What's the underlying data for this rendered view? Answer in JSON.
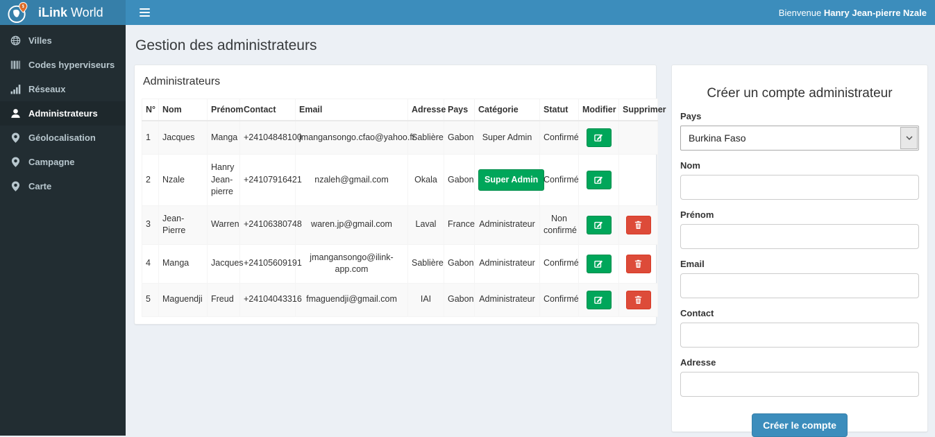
{
  "app": {
    "brand_bold": "iLink",
    "brand_rest": " World",
    "welcome_prefix": "Bienvenue",
    "welcome_user": "Hanry Jean-pierre Nzale"
  },
  "sidebar": {
    "items": [
      {
        "label": "Villes",
        "icon": "globe-icon",
        "active": false
      },
      {
        "label": "Codes hyperviseurs",
        "icon": "barcode-icon",
        "active": false
      },
      {
        "label": "Réseaux",
        "icon": "signal-icon",
        "active": false
      },
      {
        "label": "Administrateurs",
        "icon": "user-icon",
        "active": true
      },
      {
        "label": "Géolocalisation",
        "icon": "map-marker-icon",
        "active": false
      },
      {
        "label": "Campagne",
        "icon": "map-marker-icon",
        "active": false
      },
      {
        "label": "Carte",
        "icon": "map-marker-icon",
        "active": false
      }
    ]
  },
  "page": {
    "title": "Gestion des administrateurs"
  },
  "table_panel": {
    "title": "Administrateurs",
    "headers": [
      "N°",
      "Nom",
      "Prénom",
      "Contact",
      "Email",
      "Adresse",
      "Pays",
      "Catégorie",
      "Statut",
      "Modifier",
      "Supprimer"
    ],
    "rows": [
      {
        "num": "1",
        "nom": "Jacques",
        "prenom": "Manga",
        "contact": "+24104848100",
        "email": "jmangansongo.cfao@yahoo.fr",
        "adresse": "Sablière",
        "pays": "Gabon",
        "categorie": "Super Admin",
        "categorie_style": "text",
        "statut": "Confirmé",
        "can_delete": false
      },
      {
        "num": "2",
        "nom": "Nzale",
        "prenom": "Hanry Jean-pierre",
        "contact": "+24107916421",
        "email": "nzaleh@gmail.com",
        "adresse": "Okala",
        "pays": "Gabon",
        "categorie": "Super Admin",
        "categorie_style": "button",
        "statut": "Confirmé",
        "can_delete": false
      },
      {
        "num": "3",
        "nom": "Jean-Pierre",
        "prenom": "Warren",
        "contact": "+24106380748",
        "email": "waren.jp@gmail.com",
        "adresse": "Laval",
        "pays": "France",
        "categorie": "Administrateur",
        "categorie_style": "text",
        "statut": "Non confirmé",
        "can_delete": true
      },
      {
        "num": "4",
        "nom": "Manga",
        "prenom": "Jacques",
        "contact": "+24105609191",
        "email": "jmangansongo@ilink-app.com",
        "adresse": "Sablière",
        "pays": "Gabon",
        "categorie": "Administrateur",
        "categorie_style": "text",
        "statut": "Confirmé",
        "can_delete": true
      },
      {
        "num": "5",
        "nom": "Maguendji",
        "prenom": "Freud",
        "contact": "+24104043316",
        "email": "fmaguendji@gmail.com",
        "adresse": "IAI",
        "pays": "Gabon",
        "categorie": "Administrateur",
        "categorie_style": "text",
        "statut": "Confirmé",
        "can_delete": true
      }
    ],
    "edit_icon": "edit-icon",
    "delete_icon": "trash-icon"
  },
  "form_panel": {
    "title": "Créer un compte administrateur",
    "fields": [
      {
        "label": "Pays",
        "type": "select",
        "value": "Burkina Faso",
        "name": "pays"
      },
      {
        "label": "Nom",
        "type": "text",
        "value": "",
        "name": "nom"
      },
      {
        "label": "Prénom",
        "type": "text",
        "value": "",
        "name": "prenom"
      },
      {
        "label": "Email",
        "type": "text",
        "value": "",
        "name": "email"
      },
      {
        "label": "Contact",
        "type": "text",
        "value": "",
        "name": "contact"
      },
      {
        "label": "Adresse",
        "type": "text",
        "value": "",
        "name": "adresse"
      }
    ],
    "submit_label": "Créer le compte"
  },
  "colors": {
    "accent": "#3c8dbc",
    "accent_dark": "#367fa9",
    "success": "#00a65a",
    "success_dark": "#008d4c",
    "danger": "#dd4b39",
    "danger_dark": "#d73925",
    "sidebar_bg": "#222d32",
    "sidebar_active_bg": "#1e282c",
    "sidebar_text": "#b8c7ce",
    "content_bg": "#ecf0f5"
  }
}
